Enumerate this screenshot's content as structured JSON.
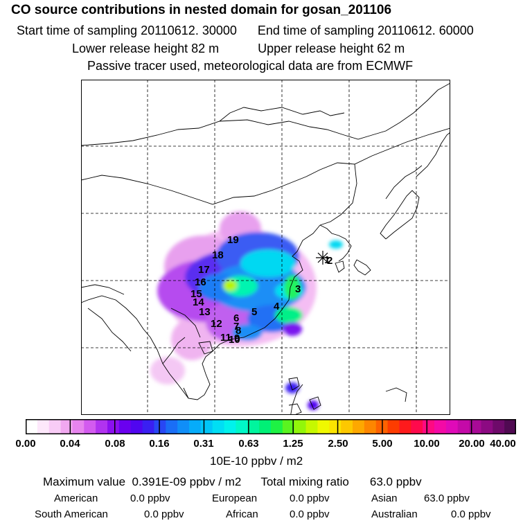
{
  "header": {
    "title": "CO  source contributions in nested domain for gosan_201106",
    "start_time": "Start time of sampling 20110612. 30000",
    "end_time": "End time of sampling 20110612. 60000",
    "lower_height": "Lower release height   82 m",
    "upper_height": "Upper release height   62 m",
    "tracer_note": "Passive tracer used, meteorological data are from ECMWF"
  },
  "map": {
    "region_labels": [
      "1",
      "2",
      "3",
      "4",
      "5",
      "6",
      "7",
      "8",
      "9",
      "10",
      "11",
      "12",
      "13",
      "14",
      "15",
      "16",
      "17",
      "18",
      "19"
    ],
    "receptor_marker": "gosan"
  },
  "colorbar": {
    "tick_labels": [
      "0.00",
      "0.04",
      "0.08",
      "0.16",
      "0.31",
      "0.63",
      "1.25",
      "2.50",
      "5.00",
      "10.00",
      "20.00",
      "40.00"
    ],
    "units": "10E-10 ppbv / m2",
    "colors": [
      "#ffffff",
      "#fde8fb",
      "#f8ccf6",
      "#f1a8f0",
      "#e784ee",
      "#d35bef",
      "#b133ef",
      "#8c10ef",
      "#6a00ef",
      "#5006f0",
      "#3a1ff2",
      "#2847f4",
      "#1a6ef6",
      "#108ef8",
      "#06acfa",
      "#00c6f8",
      "#00def4",
      "#00f2ec",
      "#00f8c8",
      "#00f59e",
      "#00f076",
      "#1ef244",
      "#5af420",
      "#92f60a",
      "#c6f800",
      "#f0f800",
      "#fbe400",
      "#fdc800",
      "#fda800",
      "#fd8600",
      "#fd6200",
      "#fd3c00",
      "#fe1a1c",
      "#ff0a4c",
      "#fe0a82",
      "#f40aa6",
      "#e00ab8",
      "#c40aa8",
      "#a80a96",
      "#8c0a82",
      "#6e0a6a",
      "#500a52"
    ]
  },
  "summary": {
    "max_label": "Maximum value",
    "max_value": "0.391E-09 ppbv / m2",
    "total_label": "Total mixing ratio",
    "total_value": "63.0 ppbv",
    "regions": [
      {
        "name": "American",
        "value": "0.0 ppbv"
      },
      {
        "name": "European",
        "value": "0.0 ppbv"
      },
      {
        "name": "Asian",
        "value": "63.0 ppbv"
      },
      {
        "name": "South American",
        "value": "0.0 ppbv"
      },
      {
        "name": "African",
        "value": "0.0 ppbv"
      },
      {
        "name": "Australian",
        "value": "0.0 ppbv"
      }
    ]
  }
}
